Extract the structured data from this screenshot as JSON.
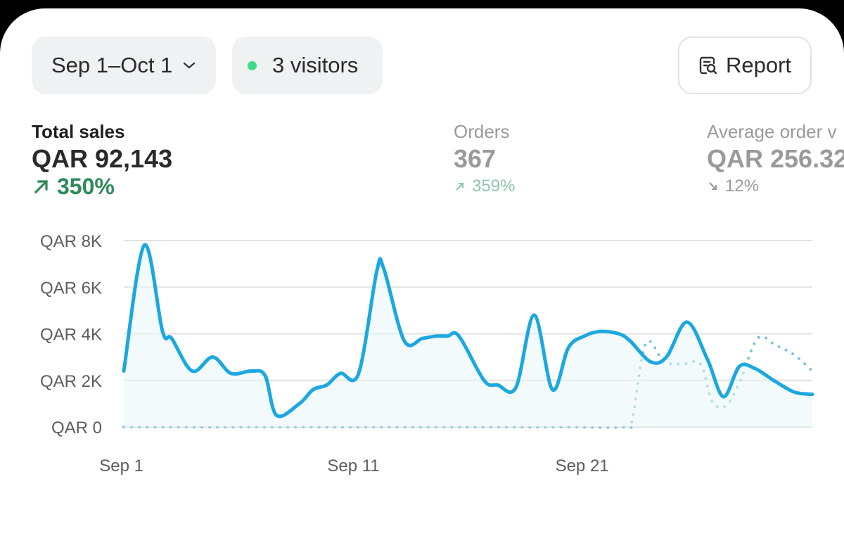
{
  "controls": {
    "date_range": "Sep 1–Oct 1",
    "visitors": "3 visitors",
    "report": "Report"
  },
  "metrics": [
    {
      "label": "Total sales",
      "value": "QAR 92,143",
      "change": "350%",
      "direction": "up"
    },
    {
      "label": "Orders",
      "value": "367",
      "change": "359%",
      "direction": "up"
    },
    {
      "label": "Average order v",
      "value": "QAR 256.32",
      "change": "12%",
      "direction": "down"
    }
  ],
  "colors": {
    "current_line": "#1ba8e0",
    "comparison_line": "#7cc3dc",
    "positive": "#2f8a5a",
    "grid": "#e2e2e2"
  },
  "chart_data": {
    "type": "line",
    "y_tick_labels": [
      "QAR 0",
      "QAR 2K",
      "QAR 4K",
      "QAR 6K",
      "QAR 8K"
    ],
    "y_ticks": [
      0,
      2000,
      4000,
      6000,
      8000
    ],
    "ylim": [
      0,
      8000
    ],
    "x_tick_labels": [
      "Sep 1",
      "Sep 11",
      "Sep 21"
    ],
    "x_ticks": [
      1,
      11,
      21
    ],
    "xlim": [
      0.9,
      31.1
    ],
    "grid": true,
    "series": [
      {
        "style": "solid",
        "x": [
          0.9,
          1.8,
          2.6,
          3.0,
          3.9,
          4.8,
          5.6,
          6.5,
          7.1,
          7.6,
          8.6,
          9.2,
          9.8,
          10.4,
          11.2,
          12.0,
          12.3,
          13.2,
          14.0,
          14.6,
          15.1,
          15.6,
          16.7,
          17.3,
          18.1,
          18.9,
          19.7,
          20.4,
          21.1,
          21.8,
          22.6,
          23.1,
          24.0,
          24.7,
          25.6,
          26.5,
          27.2,
          27.9,
          28.6,
          29.4,
          30.3,
          31.1
        ],
        "y": [
          2400,
          7800,
          4100,
          3800,
          2400,
          3000,
          2300,
          2400,
          2200,
          500,
          1000,
          1600,
          1800,
          2300,
          2300,
          6700,
          6800,
          3700,
          3800,
          3900,
          3900,
          3900,
          2000,
          1800,
          1700,
          4800,
          1600,
          3400,
          3900,
          4100,
          4000,
          3700,
          2800,
          3000,
          4500,
          2900,
          1300,
          2600,
          2500,
          2000,
          1500,
          1400
        ]
      },
      {
        "style": "dotted",
        "x": [
          0.9,
          5.0,
          10.0,
          15.0,
          20.0,
          22.9,
          23.2,
          23.8,
          24.6,
          25.4,
          26.2,
          26.7,
          27.3,
          27.9,
          28.7,
          29.5,
          30.3,
          31.1
        ],
        "y": [
          0,
          0,
          0,
          0,
          0,
          0,
          300,
          3600,
          2800,
          2700,
          2700,
          1100,
          900,
          1900,
          3800,
          3500,
          3100,
          2400
        ]
      }
    ]
  }
}
